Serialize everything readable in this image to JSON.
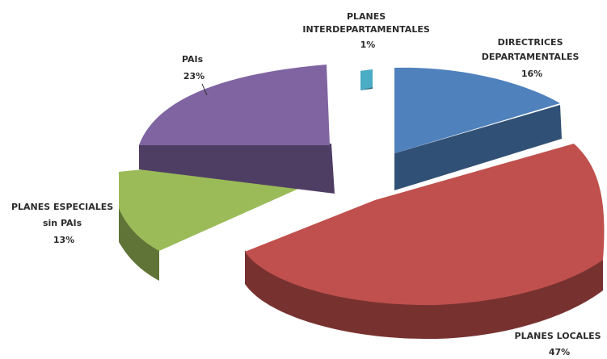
{
  "chart_data": {
    "type": "pie",
    "style": "3d-exploded",
    "slices": [
      {
        "lines": [
          "PLANES",
          "INTERDEPARTAMENTALES"
        ],
        "value": 1,
        "value_label": "1%",
        "color": "#4bacc6"
      },
      {
        "lines": [
          "DIRECTRICES",
          "DEPARTAMENTALES"
        ],
        "value": 16,
        "value_label": "16%",
        "color": "#4f81bd"
      },
      {
        "lines": [
          "PLANES LOCALES"
        ],
        "value": 47,
        "value_label": "47%",
        "color": "#c0504d"
      },
      {
        "lines": [
          "PLANES ESPECIALES",
          "sin PAIs"
        ],
        "value": 13,
        "value_label": "13%",
        "color": "#9bbb59"
      },
      {
        "lines": [
          "PAIs"
        ],
        "value": 23,
        "value_label": "23%",
        "color": "#8064a2"
      }
    ]
  }
}
